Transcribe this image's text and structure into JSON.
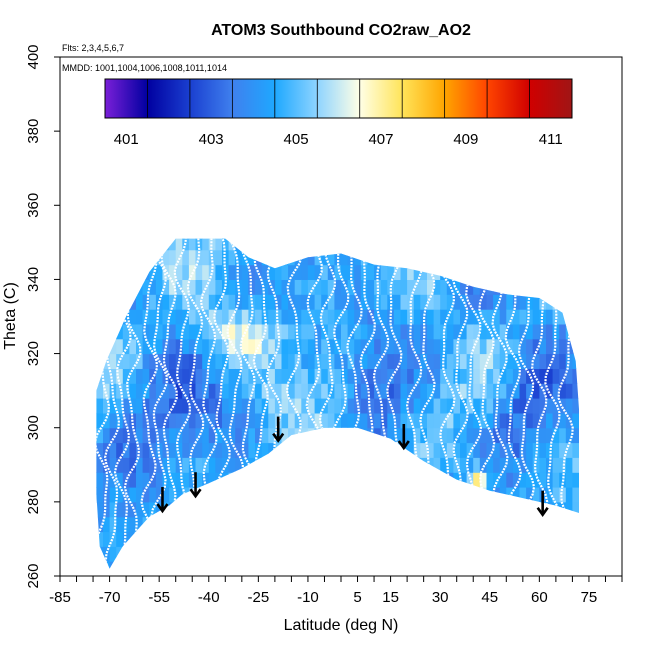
{
  "chart_data": {
    "type": "heatmap",
    "title": "ATOM3 Southbound CO2raw_AO2",
    "flights_note": "Flts: 2,3,4,5,6,7",
    "dates_note": "MMDD: 1001,1004,1006,1008,1011,1014",
    "xlabel": "Latitude (deg N)",
    "ylabel": "Theta (C)",
    "xlim": [
      -85,
      85
    ],
    "ylim": [
      260,
      400
    ],
    "x_tick_labels": [
      -85,
      -70,
      -55,
      -40,
      -25,
      -10,
      5,
      15,
      30,
      45,
      60,
      75
    ],
    "x_minor_ticks": [
      -85,
      -80,
      -75,
      -70,
      -65,
      -60,
      -55,
      -50,
      -45,
      -40,
      -35,
      -30,
      -25,
      -20,
      -15,
      -10,
      -5,
      0,
      5,
      10,
      15,
      20,
      25,
      30,
      35,
      40,
      45,
      50,
      55,
      60,
      65,
      70,
      75,
      80,
      85
    ],
    "y_ticks": [
      260,
      280,
      300,
      320,
      340,
      360,
      380,
      400
    ],
    "colorbar": {
      "range": [
        400.5,
        411.5
      ],
      "labels": [
        401,
        403,
        405,
        407,
        409,
        411
      ],
      "stops": [
        "#7a1fd8",
        "#0000a0",
        "#1a3fd0",
        "#3f80ee",
        "#1ea8ff",
        "#8fd4ff",
        "#ffffe6",
        "#ffe45a",
        "#ffa500",
        "#ff4500",
        "#d00000",
        "#a01515"
      ]
    },
    "arrows": [
      {
        "lat": -54,
        "theta": 284
      },
      {
        "lat": -44,
        "theta": 288
      },
      {
        "lat": -19,
        "theta": 303
      },
      {
        "lat": 19,
        "theta": 301
      },
      {
        "lat": 61,
        "theta": 283
      }
    ],
    "coverage_top": [
      [
        -74,
        310
      ],
      [
        -71,
        318
      ],
      [
        -65,
        330
      ],
      [
        -58,
        342
      ],
      [
        -50,
        351
      ],
      [
        -35,
        351
      ],
      [
        -28,
        346
      ],
      [
        -20,
        343
      ],
      [
        -10,
        346
      ],
      [
        0,
        347
      ],
      [
        10,
        344
      ],
      [
        20,
        343
      ],
      [
        30,
        341
      ],
      [
        40,
        338
      ],
      [
        50,
        336
      ],
      [
        60,
        335
      ],
      [
        67,
        331
      ],
      [
        71,
        318
      ],
      [
        72,
        305
      ]
    ],
    "coverage_bottom": [
      [
        72,
        277
      ],
      [
        65,
        279
      ],
      [
        55,
        281
      ],
      [
        45,
        283
      ],
      [
        35,
        286
      ],
      [
        25,
        291
      ],
      [
        15,
        297
      ],
      [
        5,
        300
      ],
      [
        -5,
        300
      ],
      [
        -15,
        298
      ],
      [
        -22,
        293
      ],
      [
        -30,
        289
      ],
      [
        -40,
        285
      ],
      [
        -48,
        282
      ],
      [
        -52,
        279
      ],
      [
        -58,
        276
      ],
      [
        -62,
        272
      ],
      [
        -66,
        268
      ],
      [
        -70,
        262
      ],
      [
        -73,
        268
      ],
      [
        -74,
        282
      ],
      [
        -74,
        300
      ]
    ],
    "profile_latitudes": [
      -72,
      -69,
      -66,
      -63,
      -58,
      -55,
      -52,
      -48,
      -44,
      -40,
      -36,
      -32,
      -28,
      -24,
      -20,
      -14,
      -8,
      -4,
      0,
      4,
      8,
      12,
      16,
      22,
      26,
      32,
      36,
      40,
      44,
      48,
      52,
      56,
      60,
      64,
      68
    ]
  }
}
